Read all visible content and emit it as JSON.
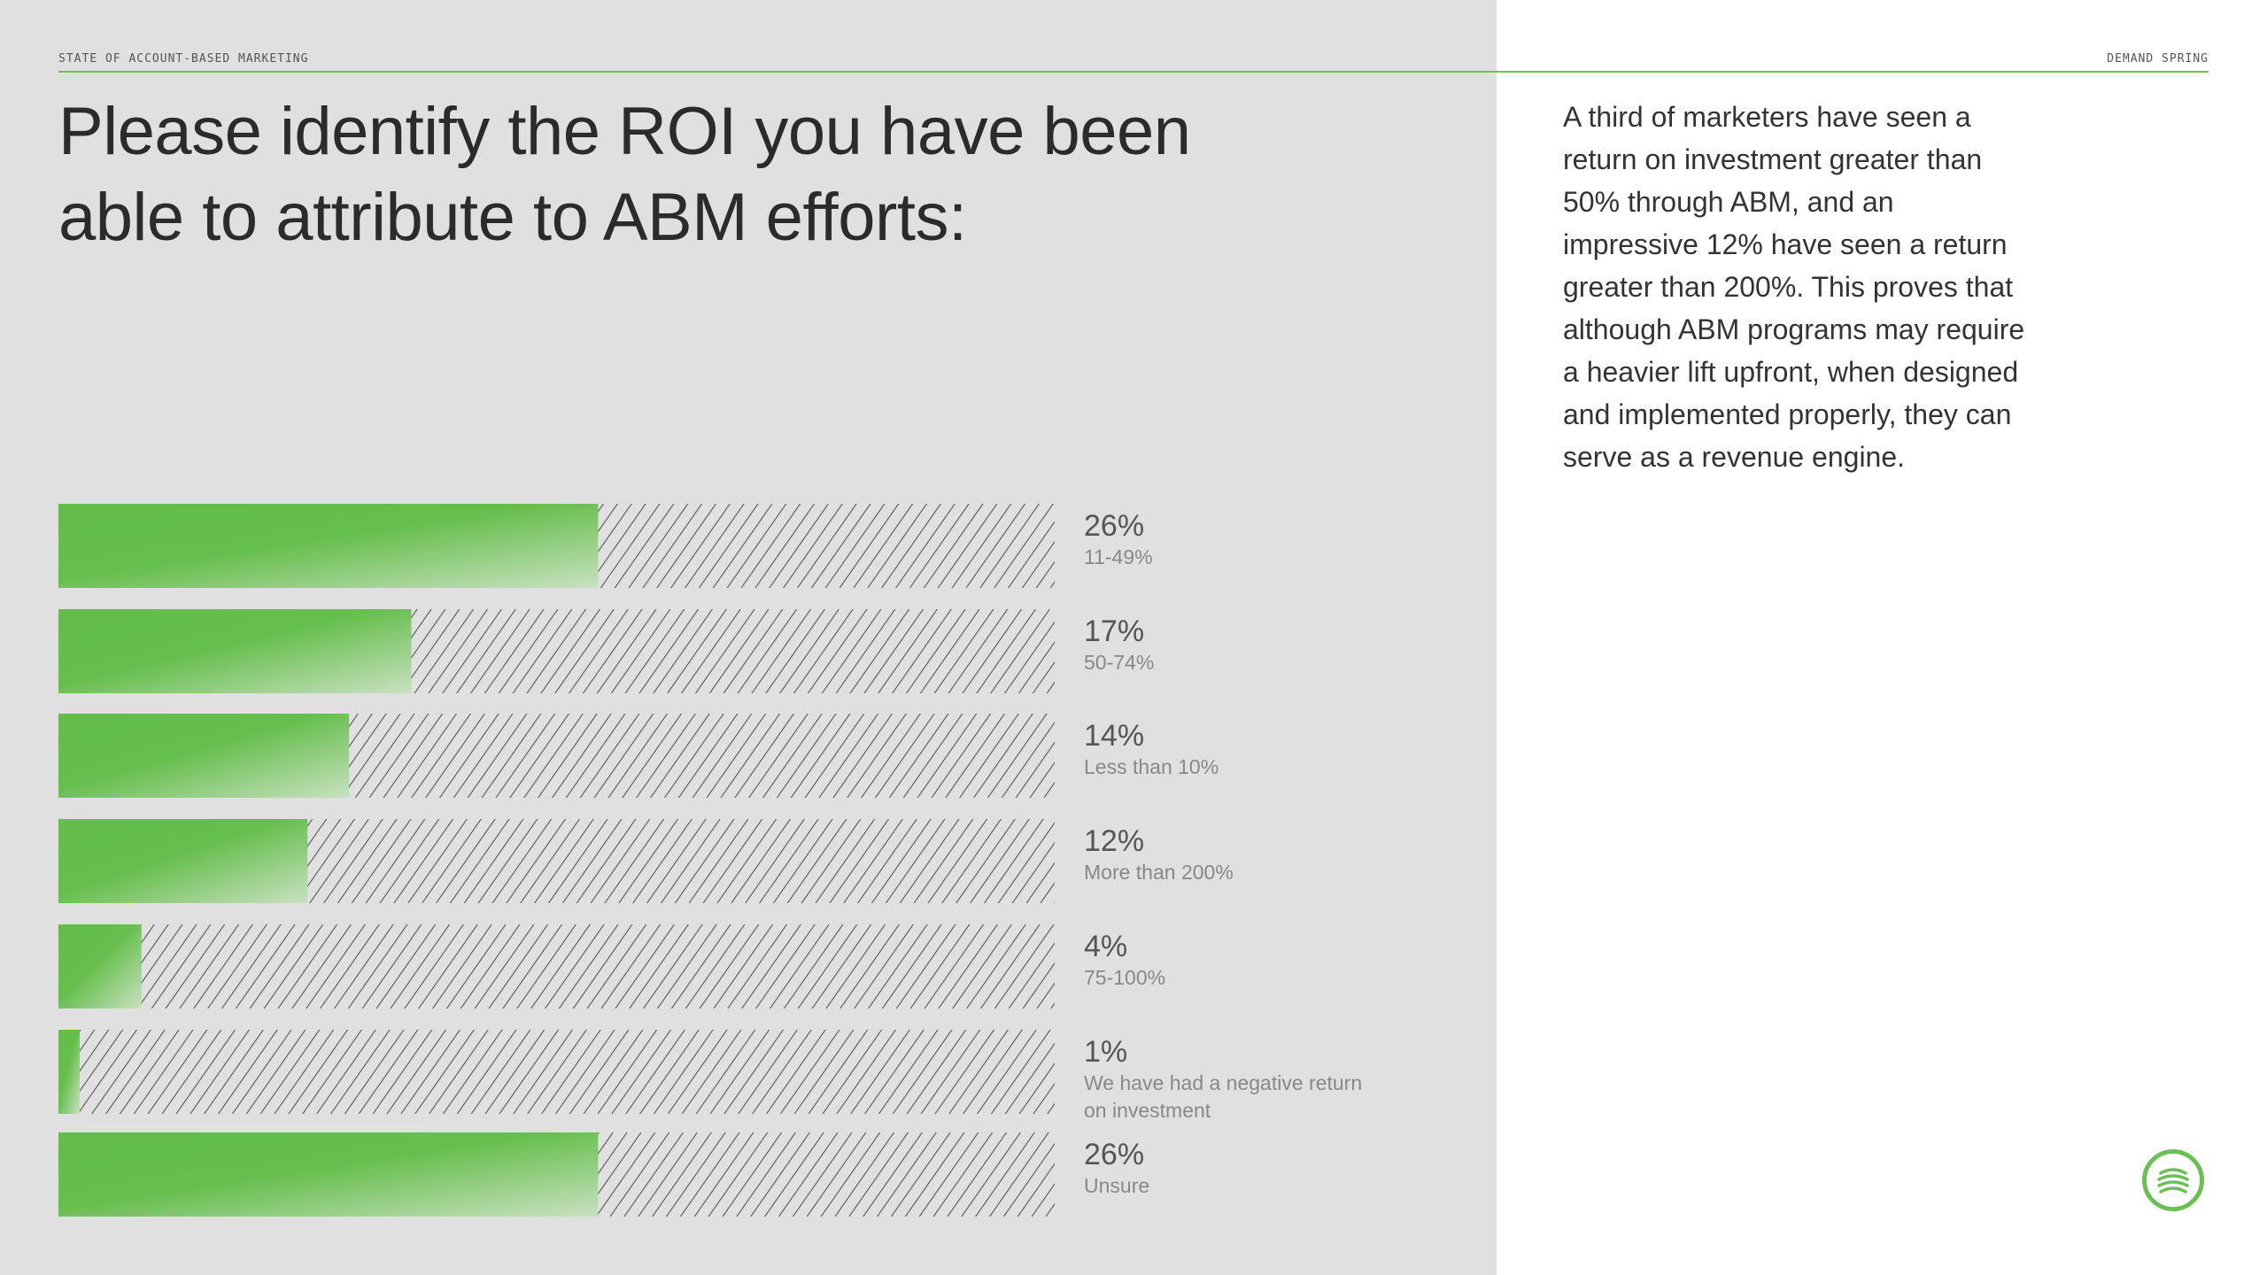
{
  "header": {
    "left_label": "STATE OF ACCOUNT-BASED MARKETING",
    "right_label": "DEMAND SPRING"
  },
  "headline": "Please identify the ROI you have been able to attribute to ABM efforts:",
  "body_text": "A third of marketers have seen a return on investment greater than 50% through ABM, and an impressive 12% have seen a return greater than 200%. This proves that although ABM programs may require a heavier lift upfront, when designed and implemented properly, they can serve as a revenue engine.",
  "colors": {
    "accent": "#6cbf54",
    "panel": "#e0e0e0",
    "hatch": "#555555"
  },
  "logo_icon": "stacked-coins-icon",
  "chart_data": {
    "type": "bar",
    "orientation": "horizontal",
    "xlim": [
      0,
      48
    ],
    "categories": [
      "11-49%",
      "50-74%",
      "Less than 10%",
      "More than 200%",
      "75-100%",
      "We have had a negative return on investment",
      "Unsure"
    ],
    "category_lines": [
      [
        "11-49%"
      ],
      [
        "50-74%"
      ],
      [
        "Less than 10%"
      ],
      [
        "More than 200%"
      ],
      [
        "75-100%"
      ],
      [
        "We have had a negative return",
        "on investment"
      ],
      [
        "Unsure"
      ]
    ],
    "values": [
      26,
      17,
      14,
      12,
      4,
      1,
      26
    ],
    "value_labels": [
      "26%",
      "17%",
      "14%",
      "12%",
      "4%",
      "1%",
      "26%"
    ]
  }
}
